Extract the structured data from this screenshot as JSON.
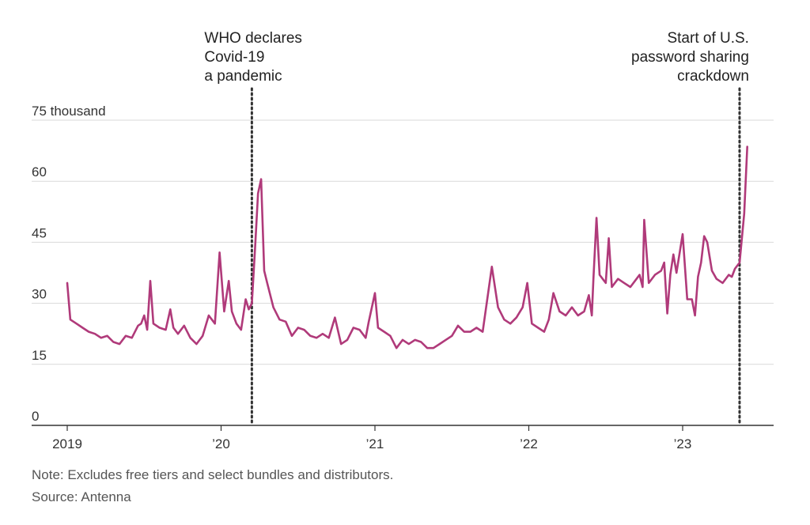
{
  "chart_data": {
    "type": "line",
    "title": "",
    "xlabel": "",
    "ylabel": "",
    "series": [
      {
        "values": [
          [
            2019.0,
            35.0
          ],
          [
            2019.02,
            26.0
          ],
          [
            2019.06,
            25.0
          ],
          [
            2019.1,
            24.0
          ],
          [
            2019.14,
            23.0
          ],
          [
            2019.18,
            22.5
          ],
          [
            2019.22,
            21.5
          ],
          [
            2019.26,
            22.0
          ],
          [
            2019.3,
            20.5
          ],
          [
            2019.34,
            20.0
          ],
          [
            2019.38,
            22.0
          ],
          [
            2019.42,
            21.5
          ],
          [
            2019.46,
            24.5
          ],
          [
            2019.48,
            25.0
          ],
          [
            2019.5,
            27.0
          ],
          [
            2019.52,
            23.5
          ],
          [
            2019.54,
            35.5
          ],
          [
            2019.56,
            25.0
          ],
          [
            2019.6,
            24.0
          ],
          [
            2019.64,
            23.5
          ],
          [
            2019.67,
            28.5
          ],
          [
            2019.69,
            24.0
          ],
          [
            2019.72,
            22.5
          ],
          [
            2019.76,
            24.5
          ],
          [
            2019.8,
            21.5
          ],
          [
            2019.84,
            20.0
          ],
          [
            2019.88,
            22.0
          ],
          [
            2019.92,
            27.0
          ],
          [
            2019.96,
            25.0
          ],
          [
            2019.99,
            42.5
          ],
          [
            2020.02,
            28.0
          ],
          [
            2020.05,
            35.5
          ],
          [
            2020.07,
            28.0
          ],
          [
            2020.1,
            25.0
          ],
          [
            2020.13,
            23.5
          ],
          [
            2020.16,
            31.0
          ],
          [
            2020.18,
            28.5
          ],
          [
            2020.2,
            30.0
          ],
          [
            2020.22,
            43.0
          ],
          [
            2020.24,
            57.0
          ],
          [
            2020.26,
            60.5
          ],
          [
            2020.28,
            38.0
          ],
          [
            2020.3,
            35.0
          ],
          [
            2020.34,
            29.0
          ],
          [
            2020.38,
            26.0
          ],
          [
            2020.42,
            25.5
          ],
          [
            2020.46,
            22.0
          ],
          [
            2020.5,
            24.0
          ],
          [
            2020.54,
            23.5
          ],
          [
            2020.58,
            22.0
          ],
          [
            2020.62,
            21.5
          ],
          [
            2020.66,
            22.5
          ],
          [
            2020.7,
            21.5
          ],
          [
            2020.74,
            26.5
          ],
          [
            2020.78,
            20.0
          ],
          [
            2020.82,
            21.0
          ],
          [
            2020.86,
            24.0
          ],
          [
            2020.9,
            23.5
          ],
          [
            2020.94,
            21.5
          ],
          [
            2020.96,
            25.5
          ],
          [
            2021.0,
            32.5
          ],
          [
            2021.02,
            24.0
          ],
          [
            2021.06,
            23.0
          ],
          [
            2021.1,
            22.0
          ],
          [
            2021.14,
            19.0
          ],
          [
            2021.18,
            21.0
          ],
          [
            2021.22,
            20.0
          ],
          [
            2021.26,
            21.0
          ],
          [
            2021.3,
            20.5
          ],
          [
            2021.34,
            19.0
          ],
          [
            2021.38,
            19.0
          ],
          [
            2021.42,
            20.0
          ],
          [
            2021.46,
            21.0
          ],
          [
            2021.5,
            22.0
          ],
          [
            2021.54,
            24.5
          ],
          [
            2021.58,
            23.0
          ],
          [
            2021.62,
            23.0
          ],
          [
            2021.66,
            24.0
          ],
          [
            2021.7,
            23.0
          ],
          [
            2021.76,
            39.0
          ],
          [
            2021.8,
            29.0
          ],
          [
            2021.84,
            26.0
          ],
          [
            2021.88,
            25.0
          ],
          [
            2021.92,
            26.5
          ],
          [
            2021.96,
            29.0
          ],
          [
            2021.99,
            35.0
          ],
          [
            2022.02,
            25.0
          ],
          [
            2022.06,
            24.0
          ],
          [
            2022.1,
            23.0
          ],
          [
            2022.13,
            26.0
          ],
          [
            2022.16,
            32.5
          ],
          [
            2022.2,
            28.0
          ],
          [
            2022.24,
            27.0
          ],
          [
            2022.28,
            29.0
          ],
          [
            2022.32,
            27.0
          ],
          [
            2022.36,
            28.0
          ],
          [
            2022.39,
            32.0
          ],
          [
            2022.41,
            27.0
          ],
          [
            2022.42,
            36.0
          ],
          [
            2022.44,
            51.0
          ],
          [
            2022.46,
            37.0
          ],
          [
            2022.5,
            35.0
          ],
          [
            2022.52,
            46.0
          ],
          [
            2022.54,
            34.0
          ],
          [
            2022.58,
            36.0
          ],
          [
            2022.62,
            35.0
          ],
          [
            2022.66,
            34.0
          ],
          [
            2022.7,
            36.0
          ],
          [
            2022.72,
            37.0
          ],
          [
            2022.74,
            34.0
          ],
          [
            2022.75,
            50.5
          ],
          [
            2022.78,
            35.0
          ],
          [
            2022.82,
            37.0
          ],
          [
            2022.86,
            38.0
          ],
          [
            2022.88,
            40.0
          ],
          [
            2022.9,
            27.5
          ],
          [
            2022.92,
            37.0
          ],
          [
            2022.94,
            42.0
          ],
          [
            2022.96,
            37.5
          ],
          [
            2023.0,
            47.0
          ],
          [
            2023.03,
            31.0
          ],
          [
            2023.06,
            31.0
          ],
          [
            2023.08,
            27.0
          ],
          [
            2023.1,
            36.5
          ],
          [
            2023.12,
            40.0
          ],
          [
            2023.14,
            46.5
          ],
          [
            2023.16,
            45.0
          ],
          [
            2023.19,
            38.0
          ],
          [
            2023.22,
            36.0
          ],
          [
            2023.26,
            35.0
          ],
          [
            2023.3,
            37.0
          ],
          [
            2023.32,
            36.5
          ],
          [
            2023.34,
            38.5
          ],
          [
            2023.37,
            40.0
          ],
          [
            2023.4,
            52.0
          ],
          [
            2023.42,
            68.5
          ]
        ]
      }
    ],
    "xlim": [
      2019.0,
      2023.42
    ],
    "ylim": [
      0,
      75
    ],
    "x_ticks": [
      {
        "value": 2019,
        "label": "2019"
      },
      {
        "value": 2020,
        "label": "’20"
      },
      {
        "value": 2021,
        "label": "’21"
      },
      {
        "value": 2022,
        "label": "’22"
      },
      {
        "value": 2023,
        "label": "’23"
      }
    ],
    "y_ticks": [
      {
        "value": 0,
        "label": "0"
      },
      {
        "value": 15,
        "label": "15"
      },
      {
        "value": 30,
        "label": "30"
      },
      {
        "value": 45,
        "label": "45"
      },
      {
        "value": 60,
        "label": "60"
      },
      {
        "value": 75,
        "label": "75 thousand"
      }
    ],
    "grid": true,
    "annotations": [
      {
        "x": 2020.2,
        "lines": [
          "WHO declares",
          "Covid-19",
          "a pandemic"
        ],
        "align": "left"
      },
      {
        "x": 2023.37,
        "lines": [
          "Start of U.S.",
          "password sharing",
          "crackdown"
        ],
        "align": "right"
      }
    ],
    "colors": {
      "line": "#b03a7a",
      "grid": "#d9d9d9",
      "axis": "#333333",
      "marker": "#333333"
    }
  },
  "footer": {
    "note": "Note: Excludes free tiers and select bundles and distributors.",
    "source": "Source: Antenna"
  }
}
